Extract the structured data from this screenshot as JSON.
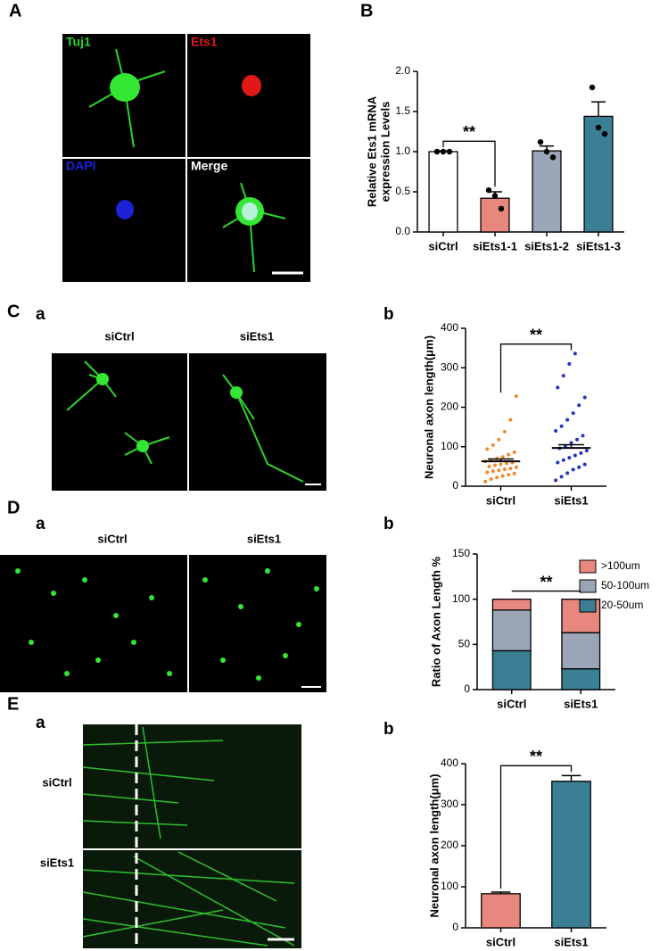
{
  "panel_labels": [
    "A",
    "B",
    "C",
    "D",
    "E"
  ],
  "sub_labels": {
    "Ca": "a",
    "Cb": "b",
    "Da": "a",
    "Db": "b",
    "Ea": "a",
    "Eb": "b"
  },
  "panel_a_channels": [
    "Tuj1",
    "Ets1",
    "DAPI",
    "Merge"
  ],
  "panel_c_conditions": [
    "siCtrl",
    "siEts1"
  ],
  "panel_d_conditions": [
    "siCtrl",
    "siEts1"
  ],
  "panel_e_conditions": [
    "siCtrl",
    "siEts1"
  ],
  "chart_data": [
    {
      "type": "bar",
      "y_label": [
        "Relative Ets1 mRNA",
        "expression Levels"
      ],
      "categories": [
        "siCtrl",
        "siEts1-1",
        "siEts1-2",
        "siEts1-3"
      ],
      "values": [
        1.0,
        0.42,
        1.01,
        1.44
      ],
      "errors": [
        0.01,
        0.08,
        0.06,
        0.18
      ],
      "points": [
        [
          1,
          1,
          1
        ],
        [
          0.52,
          0.45,
          0.29
        ],
        [
          1.12,
          1.0,
          0.93
        ],
        [
          1.8,
          1.3,
          1.22
        ]
      ],
      "colors": [
        "#ffffff",
        "#e8877e",
        "#9aa5b8",
        "#3b7f95"
      ],
      "ylim": [
        0,
        2
      ],
      "yticks": [
        {
          "value": 0,
          "label": "0.0"
        },
        0.5,
        {
          "value": 1,
          "label": "1.0"
        },
        1.5,
        {
          "value": 2,
          "label": "2.0"
        }
      ],
      "annotation": "**",
      "compare": [
        0,
        1
      ]
    },
    {
      "type": "strip",
      "y_label": "Neuronal axon length(μm)",
      "categories": [
        "siCtrl",
        "siEts1"
      ],
      "values": [
        63,
        97
      ],
      "errors": [
        6,
        8
      ],
      "colors": [
        "#f08a2c",
        "#2233c0"
      ],
      "points": [
        [
          12,
          18,
          22,
          26,
          29,
          32,
          35,
          38,
          40,
          43,
          45,
          48,
          50,
          53,
          55,
          58,
          60,
          63,
          66,
          70,
          74,
          80,
          86,
          94,
          104,
          118,
          138,
          168,
          228
        ],
        [
          15,
          24,
          33,
          42,
          48,
          55,
          60,
          66,
          72,
          78,
          84,
          90,
          96,
          102,
          110,
          118,
          128,
          140,
          152,
          168,
          185,
          205,
          225,
          250,
          280,
          310,
          336
        ]
      ],
      "ylim": [
        0,
        400
      ],
      "yticks": [
        0,
        100,
        200,
        300,
        400
      ],
      "annotation": "**",
      "compare": [
        0,
        1
      ]
    },
    {
      "type": "stacked_bar",
      "y_label": "Ratio of Axon Length %",
      "categories": [
        "siCtrl",
        "siEts1"
      ],
      "series": [
        {
          "name": "20-50um",
          "color": "#3b7f95",
          "values": [
            43,
            23
          ]
        },
        {
          "name": "50-100um",
          "color": "#9aa5b8",
          "values": [
            45,
            40
          ]
        },
        {
          "name": ">100um",
          "color": "#e8877e",
          "values": [
            12,
            37
          ]
        }
      ],
      "ylim": [
        0,
        150
      ],
      "yticks": [
        0,
        50,
        100,
        150
      ],
      "annotation": "**",
      "compare": [
        0,
        1
      ]
    },
    {
      "type": "bar",
      "y_label": "Neuronal axon length(μm)",
      "categories": [
        "siCtrl",
        "siEts1"
      ],
      "values": [
        83,
        357
      ],
      "errors": [
        4,
        14
      ],
      "colors": [
        "#e8877e",
        "#3b7f95"
      ],
      "ylim": [
        0,
        400
      ],
      "yticks": [
        0,
        100,
        200,
        300,
        400
      ],
      "annotation": "**",
      "compare": [
        0,
        1
      ]
    }
  ]
}
